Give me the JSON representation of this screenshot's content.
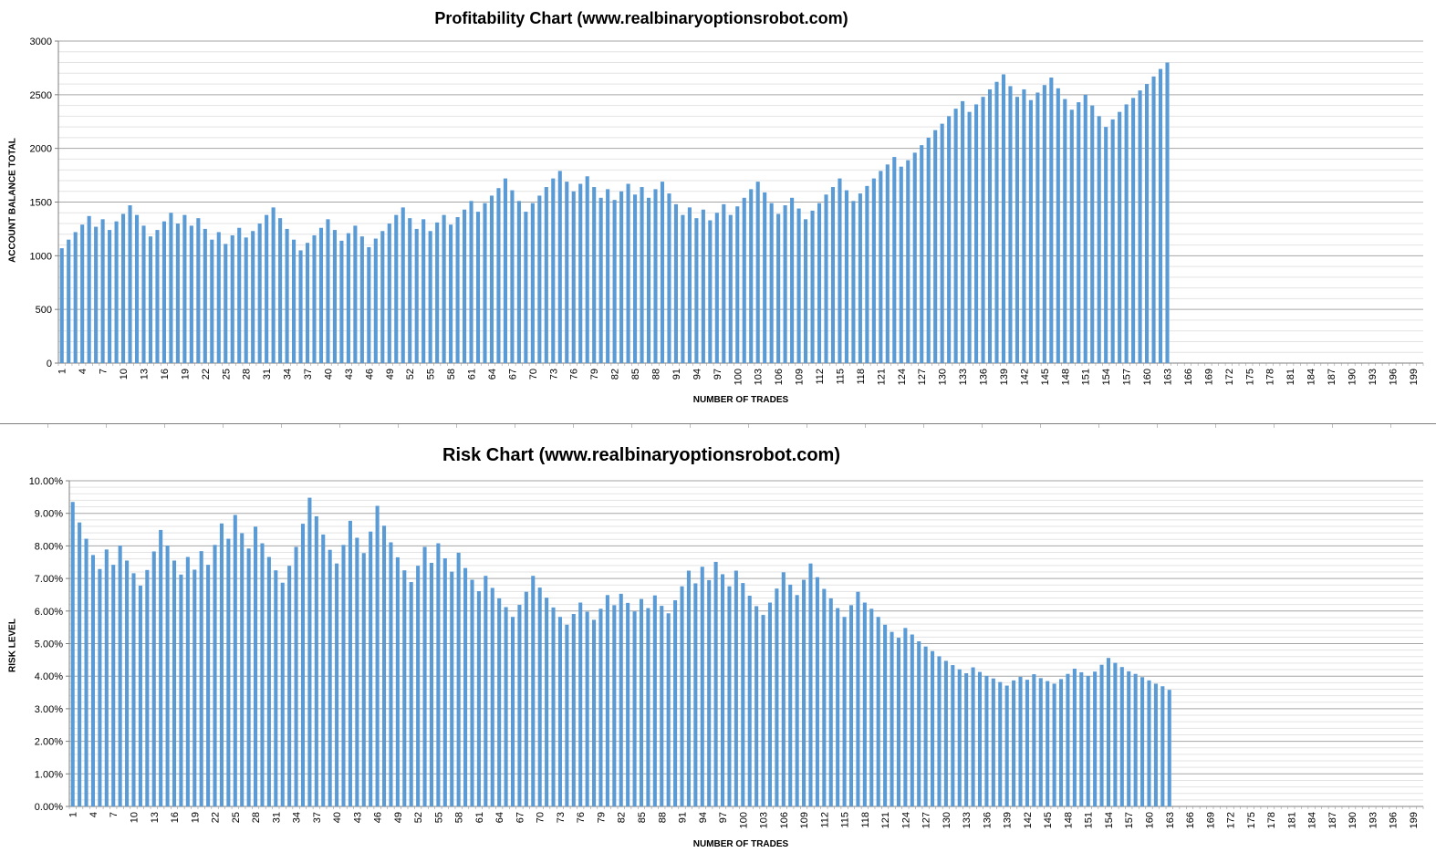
{
  "chart_data": [
    {
      "type": "bar",
      "title": "Profitability Chart (www.realbinaryoptionsrobot.com)",
      "xlabel": "NUMBER OF TRADES",
      "ylabel": "ACCOUNT BALANCE TOTAL",
      "ylim": [
        0,
        3000
      ],
      "yticks": [
        "0",
        "500",
        "1000",
        "1500",
        "2000",
        "2500",
        "3000"
      ],
      "x_range": [
        1,
        200
      ],
      "x_tick_step": 3,
      "bar_color": "#5b9bd5",
      "grid": true,
      "legend": "none",
      "values": [
        1070,
        1150,
        1220,
        1290,
        1370,
        1270,
        1340,
        1240,
        1320,
        1390,
        1470,
        1380,
        1280,
        1180,
        1240,
        1320,
        1400,
        1300,
        1380,
        1280,
        1350,
        1250,
        1150,
        1220,
        1110,
        1190,
        1260,
        1170,
        1230,
        1300,
        1380,
        1450,
        1350,
        1250,
        1150,
        1050,
        1120,
        1190,
        1260,
        1340,
        1240,
        1140,
        1210,
        1280,
        1180,
        1080,
        1160,
        1230,
        1300,
        1380,
        1450,
        1350,
        1250,
        1340,
        1230,
        1310,
        1380,
        1290,
        1360,
        1430,
        1510,
        1410,
        1490,
        1560,
        1630,
        1720,
        1610,
        1510,
        1410,
        1490,
        1560,
        1640,
        1720,
        1790,
        1690,
        1600,
        1670,
        1740,
        1640,
        1540,
        1620,
        1520,
        1600,
        1670,
        1570,
        1640,
        1540,
        1620,
        1690,
        1580,
        1480,
        1380,
        1450,
        1350,
        1430,
        1330,
        1400,
        1480,
        1380,
        1460,
        1540,
        1620,
        1690,
        1590,
        1490,
        1390,
        1470,
        1540,
        1440,
        1340,
        1420,
        1490,
        1570,
        1640,
        1720,
        1610,
        1510,
        1580,
        1650,
        1720,
        1790,
        1850,
        1920,
        1830,
        1890,
        1960,
        2030,
        2100,
        2170,
        2230,
        2300,
        2370,
        2440,
        2340,
        2410,
        2480,
        2550,
        2620,
        2690,
        2580,
        2480,
        2550,
        2450,
        2520,
        2590,
        2660,
        2560,
        2460,
        2360,
        2430,
        2500,
        2400,
        2300,
        2200,
        2270,
        2340,
        2410,
        2470,
        2540,
        2600,
        2670,
        2740,
        2800
      ]
    },
    {
      "type": "bar",
      "title": "Risk Chart (www.realbinaryoptionsrobot.com)",
      "xlabel": "NUMBER OF TRADES",
      "ylabel": "RISK LEVEL",
      "ylim": [
        0,
        10
      ],
      "yticks": [
        "0.00%",
        "1.00%",
        "2.00%",
        "3.00%",
        "4.00%",
        "5.00%",
        "6.00%",
        "7.00%",
        "8.00%",
        "9.00%",
        "10.00%"
      ],
      "x_range": [
        1,
        200
      ],
      "x_tick_step": 3,
      "bar_color": "#5b9bd5",
      "grid": true,
      "legend": "none",
      "values": [
        9.35,
        8.72,
        8.22,
        7.72,
        7.29,
        7.89,
        7.42,
        8.01,
        7.55,
        7.16,
        6.78,
        7.26,
        7.83,
        8.49,
        8.01,
        7.55,
        7.12,
        7.66,
        7.27,
        7.84,
        7.42,
        8.03,
        8.69,
        8.22,
        8.95,
        8.39,
        7.92,
        8.59,
        8.08,
        7.66,
        7.25,
        6.87,
        7.39,
        7.97,
        8.68,
        9.48,
        8.91,
        8.35,
        7.88,
        7.46,
        8.03,
        8.77,
        8.25,
        7.78,
        8.44,
        9.23,
        8.62,
        8.11,
        7.65,
        7.25,
        6.89,
        7.39,
        7.97,
        7.48,
        8.08,
        7.62,
        7.21,
        7.79,
        7.32,
        6.96,
        6.61,
        7.08,
        6.71,
        6.39,
        6.12,
        5.82,
        6.19,
        6.59,
        7.08,
        6.72,
        6.41,
        6.11,
        5.82,
        5.58,
        5.91,
        6.26,
        5.98,
        5.73,
        6.07,
        6.49,
        6.18,
        6.53,
        6.25,
        5.99,
        6.37,
        6.09,
        6.48,
        6.16,
        5.93,
        6.33,
        6.76,
        7.24,
        6.85,
        7.36,
        6.95,
        7.51,
        7.13,
        6.76,
        7.24,
        6.86,
        6.47,
        6.15,
        5.88,
        6.26,
        6.69,
        7.19,
        6.81,
        6.49,
        6.96,
        7.46,
        7.04,
        6.68,
        6.39,
        6.09,
        5.82,
        6.18,
        6.59,
        6.26,
        6.07,
        5.82,
        5.58,
        5.36,
        5.18,
        5.48,
        5.28,
        5.07,
        4.91,
        4.77,
        4.61,
        4.47,
        4.34,
        4.21,
        4.09,
        4.27,
        4.13,
        4.01,
        3.93,
        3.82,
        3.71,
        3.87,
        3.98,
        3.89,
        4.06,
        3.94,
        3.85,
        3.77,
        3.91,
        4.07,
        4.23,
        4.12,
        4.01,
        4.14,
        4.35,
        4.56,
        4.41,
        4.28,
        4.15,
        4.07,
        3.97,
        3.87,
        3.77,
        3.69,
        3.58
      ]
    }
  ]
}
